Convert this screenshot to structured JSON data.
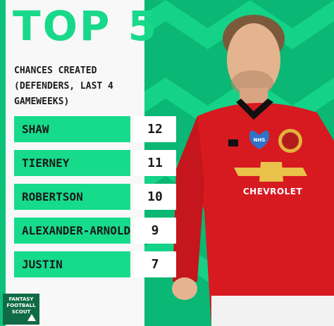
{
  "title": "TOP 5",
  "subtitle": "CHANCES CREATED\n(DEFENDERS, LAST 4\nGAMEWEEKS)",
  "colors": {
    "accent": "#16db8b",
    "background_green": "#0ab774",
    "panel": "#f7f8f7",
    "kit_red": "#d71920"
  },
  "chart_data": {
    "type": "bar",
    "title": "TOP 5",
    "subtitle": "CHANCES CREATED (DEFENDERS, LAST 4 GAMEWEEKS)",
    "categories": [
      "SHAW",
      "TIERNEY",
      "ROBERTSON",
      "ALEXANDER-ARNOLD",
      "JUSTIN"
    ],
    "values": [
      12,
      11,
      10,
      9,
      7
    ]
  },
  "rows": [
    {
      "name": "SHAW",
      "value": "12"
    },
    {
      "name": "TIERNEY",
      "value": "11"
    },
    {
      "name": "ROBERTSON",
      "value": "10"
    },
    {
      "name": "ALEXANDER-ARNOLD",
      "value": "9"
    },
    {
      "name": "JUSTIN",
      "value": "7"
    }
  ],
  "logo": {
    "text": "FANTASY FOOTBALL SCOUT"
  },
  "player": {
    "sponsor": "CHEVROLET",
    "badge": "NHS",
    "icon": "player-photo"
  }
}
